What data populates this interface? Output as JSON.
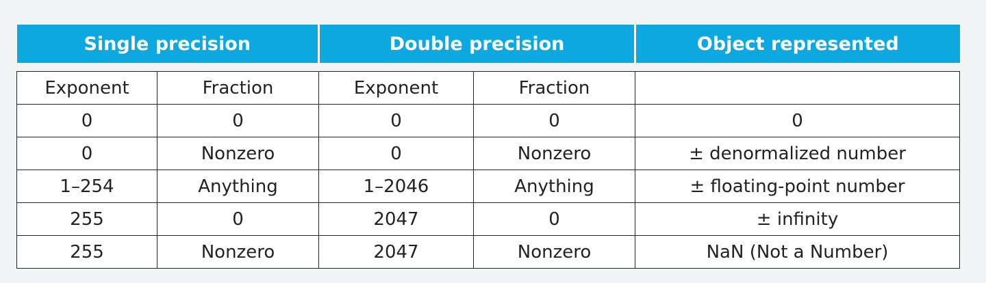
{
  "header": {
    "single_precision": "Single precision",
    "double_precision": "Double precision",
    "object_represented": "Object represented"
  },
  "subheader": {
    "sp_exponent": "Exponent",
    "sp_fraction": "Fraction",
    "dp_exponent": "Exponent",
    "dp_fraction": "Fraction",
    "object": ""
  },
  "rows": [
    {
      "sp_exp": "0",
      "sp_frac": "0",
      "dp_exp": "0",
      "dp_frac": "0",
      "object": "0"
    },
    {
      "sp_exp": "0",
      "sp_frac": "Nonzero",
      "dp_exp": "0",
      "dp_frac": "Nonzero",
      "object": "± denormalized number"
    },
    {
      "sp_exp": "1–254",
      "sp_frac": "Anything",
      "dp_exp": "1–2046",
      "dp_frac": "Anything",
      "object": "± floating-point number"
    },
    {
      "sp_exp": "255",
      "sp_frac": "0",
      "dp_exp": "2047",
      "dp_frac": "0",
      "object": "± infinity"
    },
    {
      "sp_exp": "255",
      "sp_frac": "Nonzero",
      "dp_exp": "2047",
      "dp_frac": "Nonzero",
      "object": "NaN (Not a Number)"
    }
  ],
  "colors": {
    "header_bg": "#0ea8e0",
    "header_text": "#ffffff",
    "cell_border": "#222222",
    "page_bg": "#f3f4f6"
  }
}
